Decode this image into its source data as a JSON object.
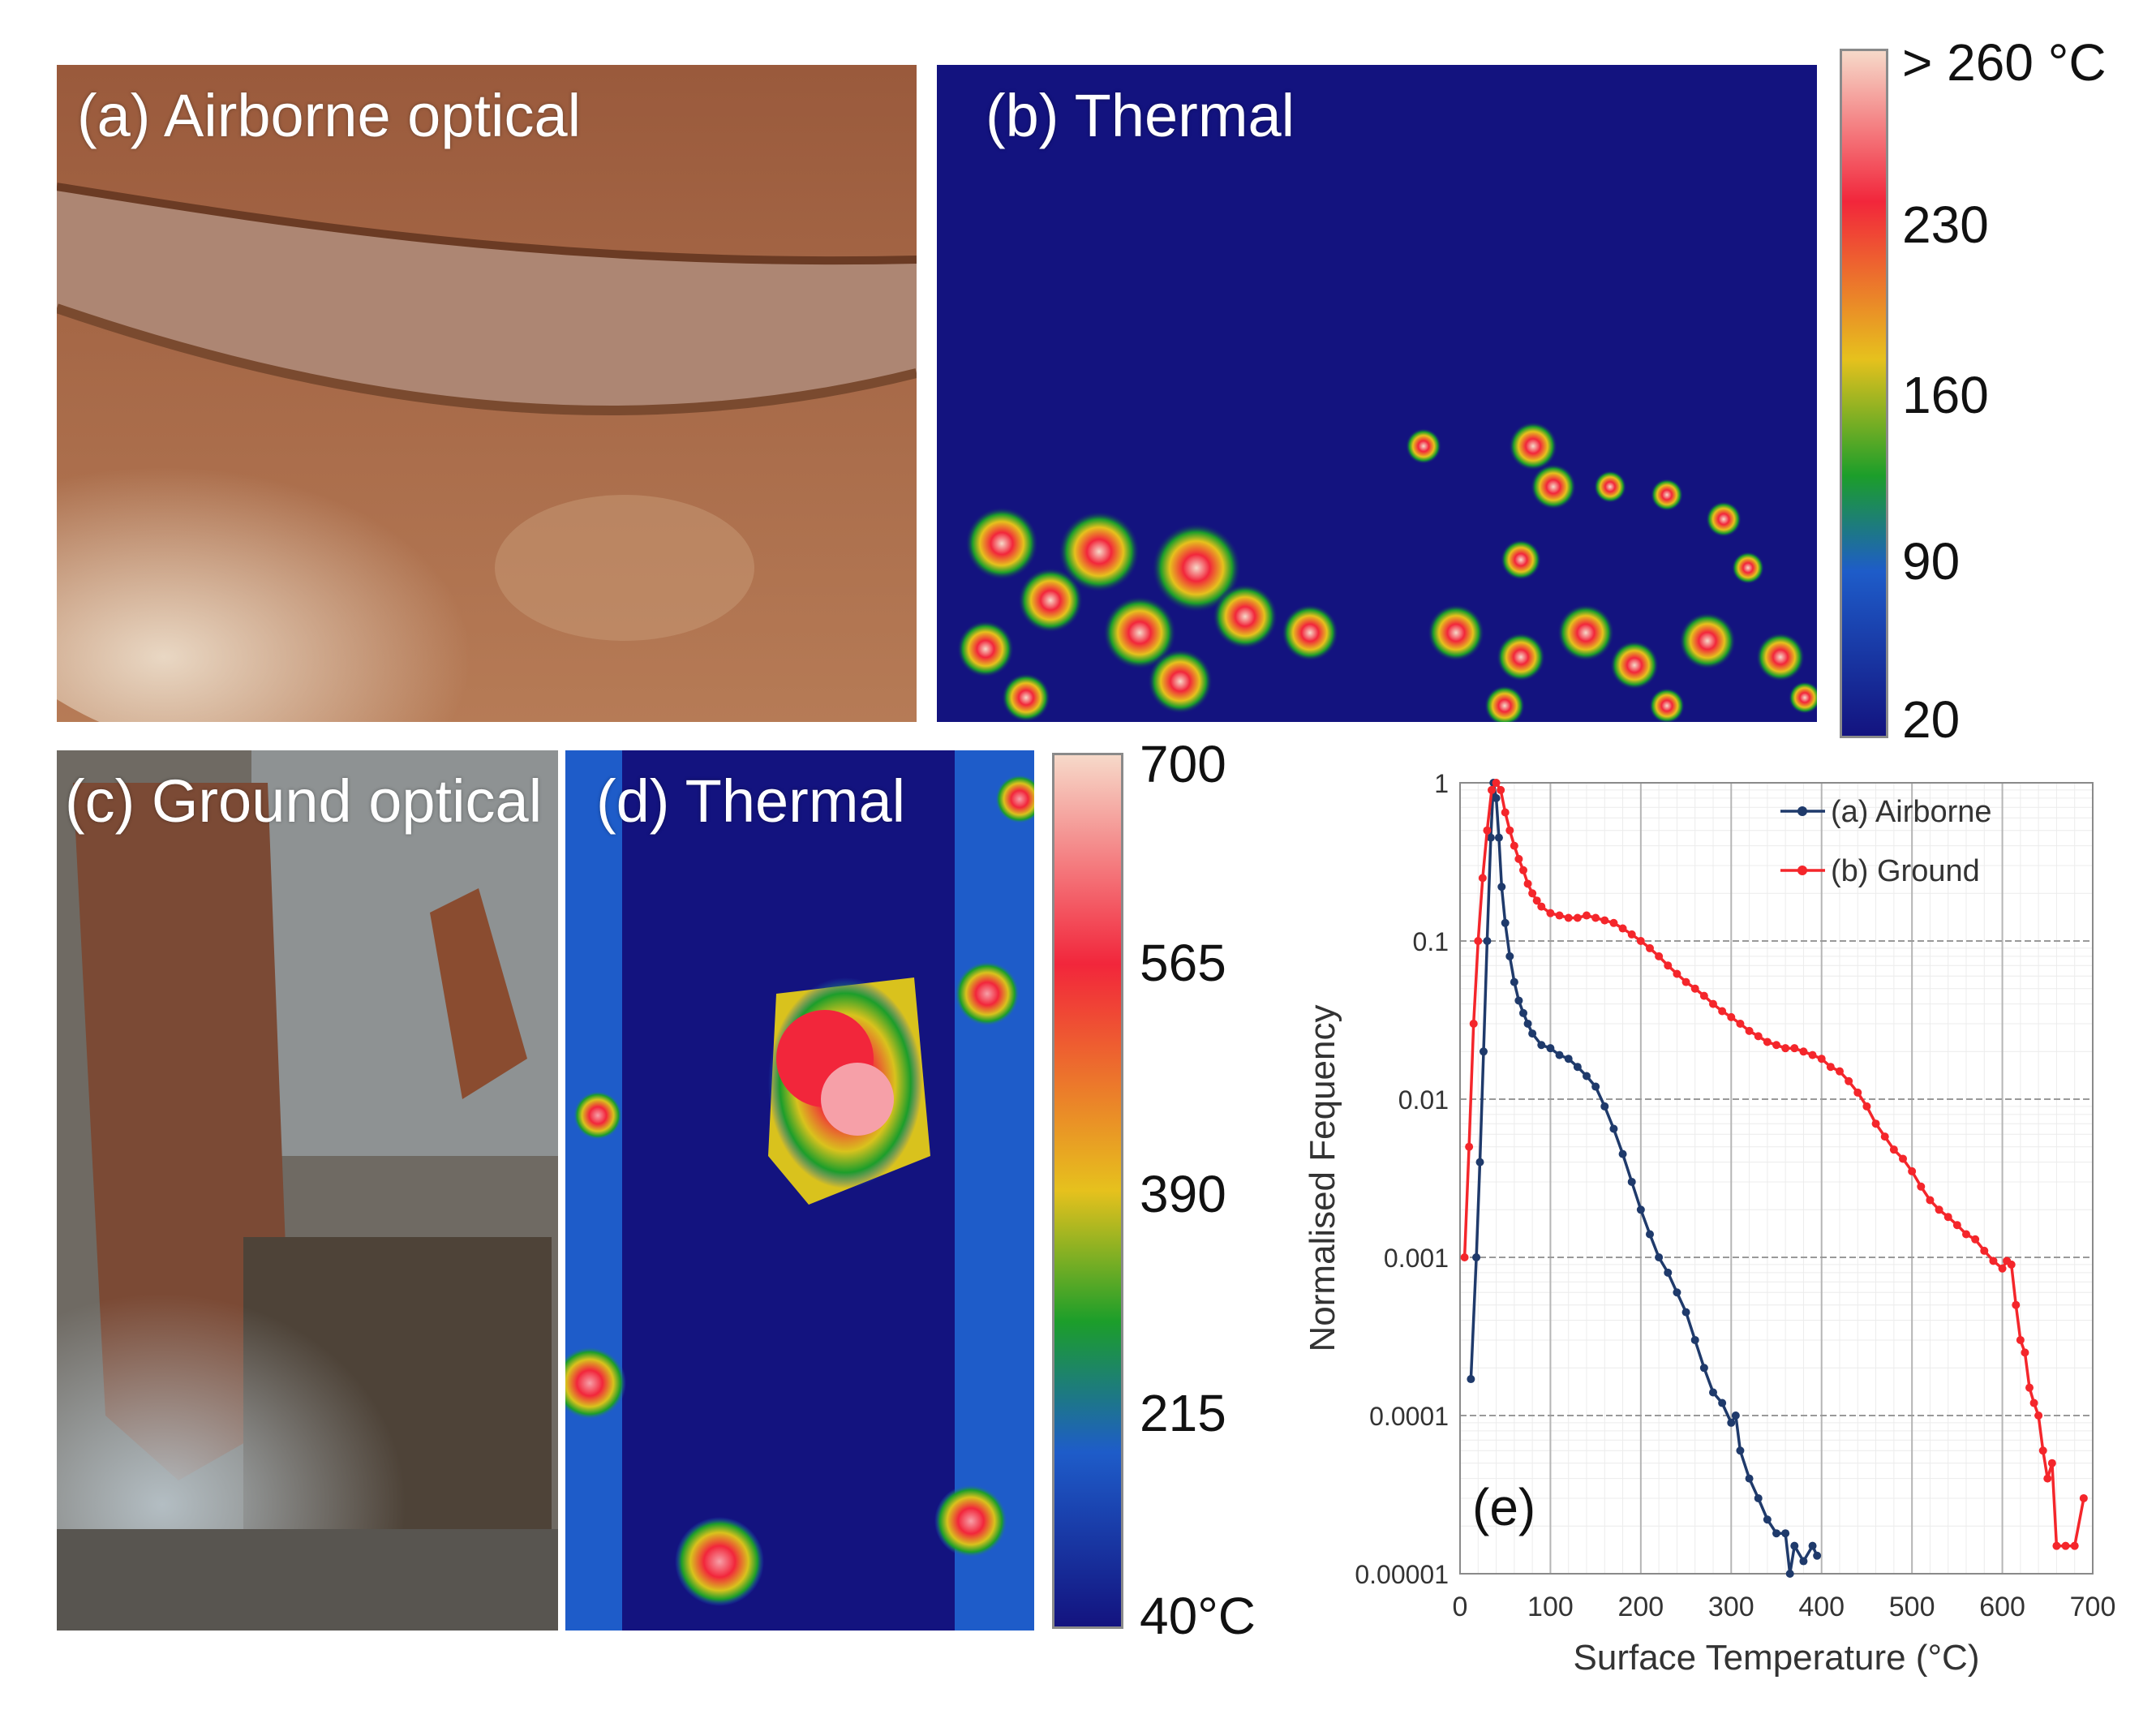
{
  "panels": {
    "a_label": "(a) Airborne optical",
    "b_label": "(b) Thermal",
    "c_label": "(c) Ground optical",
    "d_label": "(d) Thermal"
  },
  "colorbar_top": {
    "ticks": [
      "> 260 °C",
      "230",
      "160",
      "90",
      "20"
    ]
  },
  "colorbar_bottom": {
    "ticks": [
      "700",
      "565",
      "390",
      "215",
      "40°C"
    ]
  },
  "colors": {
    "thermal_low": "#13137f",
    "thermal_mid": "#1c9e2a",
    "thermal_high": "#f2263b",
    "thermal_peak": "#f6d9c9",
    "airborne_series": "#1f3a6b",
    "ground_series": "#f4262b"
  },
  "chart_data": {
    "type": "line",
    "panel_label": "(e)",
    "xlabel": "Surface Temperature (°C)",
    "ylabel": "Normalised Fequency",
    "xlim": [
      0,
      700
    ],
    "ylim": [
      1e-05,
      1
    ],
    "yscale": "log",
    "grid": true,
    "legend_position": "top-right",
    "x_ticks": [
      "0",
      "100",
      "200",
      "300",
      "400",
      "500",
      "600",
      "700"
    ],
    "y_ticks": [
      "1",
      "0.1",
      "0.01",
      "0.001",
      "0.0001",
      "0.00001"
    ],
    "series": [
      {
        "name": "(a) Airborne",
        "color": "#1f3a6b",
        "points": [
          [
            12,
            0.00017
          ],
          [
            18,
            0.001
          ],
          [
            22,
            0.004
          ],
          [
            26,
            0.02
          ],
          [
            30,
            0.1
          ],
          [
            34,
            0.45
          ],
          [
            37,
            1
          ],
          [
            40,
            0.8
          ],
          [
            43,
            0.45
          ],
          [
            46,
            0.22
          ],
          [
            50,
            0.13
          ],
          [
            55,
            0.08
          ],
          [
            60,
            0.055
          ],
          [
            65,
            0.042
          ],
          [
            70,
            0.035
          ],
          [
            75,
            0.03
          ],
          [
            80,
            0.026
          ],
          [
            90,
            0.022
          ],
          [
            100,
            0.021
          ],
          [
            110,
            0.019
          ],
          [
            120,
            0.018
          ],
          [
            130,
            0.016
          ],
          [
            140,
            0.014
          ],
          [
            150,
            0.012
          ],
          [
            160,
            0.009
          ],
          [
            170,
            0.0065
          ],
          [
            180,
            0.0045
          ],
          [
            190,
            0.003
          ],
          [
            200,
            0.002
          ],
          [
            210,
            0.0014
          ],
          [
            220,
            0.001
          ],
          [
            230,
            0.0008
          ],
          [
            240,
            0.0006
          ],
          [
            250,
            0.00045
          ],
          [
            260,
            0.0003
          ],
          [
            270,
            0.0002
          ],
          [
            280,
            0.00014
          ],
          [
            290,
            0.00012
          ],
          [
            300,
            9e-05
          ],
          [
            305,
            0.0001
          ],
          [
            310,
            6e-05
          ],
          [
            320,
            4e-05
          ],
          [
            330,
            3e-05
          ],
          [
            340,
            2.2e-05
          ],
          [
            350,
            1.8e-05
          ],
          [
            360,
            1.8e-05
          ],
          [
            365,
            1e-05
          ],
          [
            370,
            1.5e-05
          ],
          [
            380,
            1.2e-05
          ],
          [
            390,
            1.5e-05
          ],
          [
            395,
            1.3e-05
          ]
        ]
      },
      {
        "name": "(b) Ground",
        "color": "#f4262b",
        "points": [
          [
            5,
            0.001
          ],
          [
            10,
            0.005
          ],
          [
            15,
            0.03
          ],
          [
            20,
            0.1
          ],
          [
            25,
            0.25
          ],
          [
            30,
            0.5
          ],
          [
            35,
            0.9
          ],
          [
            40,
            1
          ],
          [
            45,
            0.9
          ],
          [
            50,
            0.65
          ],
          [
            55,
            0.5
          ],
          [
            60,
            0.4
          ],
          [
            65,
            0.33
          ],
          [
            70,
            0.28
          ],
          [
            75,
            0.23
          ],
          [
            80,
            0.2
          ],
          [
            85,
            0.18
          ],
          [
            90,
            0.165
          ],
          [
            100,
            0.15
          ],
          [
            110,
            0.145
          ],
          [
            120,
            0.14
          ],
          [
            130,
            0.14
          ],
          [
            140,
            0.145
          ],
          [
            150,
            0.14
          ],
          [
            160,
            0.135
          ],
          [
            170,
            0.13
          ],
          [
            180,
            0.12
          ],
          [
            190,
            0.11
          ],
          [
            200,
            0.1
          ],
          [
            210,
            0.09
          ],
          [
            220,
            0.08
          ],
          [
            230,
            0.07
          ],
          [
            240,
            0.062
          ],
          [
            250,
            0.055
          ],
          [
            260,
            0.05
          ],
          [
            270,
            0.045
          ],
          [
            280,
            0.04
          ],
          [
            290,
            0.036
          ],
          [
            300,
            0.033
          ],
          [
            310,
            0.03
          ],
          [
            320,
            0.027
          ],
          [
            330,
            0.025
          ],
          [
            340,
            0.023
          ],
          [
            350,
            0.022
          ],
          [
            360,
            0.021
          ],
          [
            370,
            0.021
          ],
          [
            380,
            0.02
          ],
          [
            390,
            0.019
          ],
          [
            400,
            0.018
          ],
          [
            410,
            0.016
          ],
          [
            420,
            0.015
          ],
          [
            430,
            0.013
          ],
          [
            440,
            0.011
          ],
          [
            450,
            0.009
          ],
          [
            460,
            0.007
          ],
          [
            470,
            0.0058
          ],
          [
            480,
            0.0048
          ],
          [
            490,
            0.0042
          ],
          [
            500,
            0.0035
          ],
          [
            510,
            0.0028
          ],
          [
            520,
            0.0023
          ],
          [
            530,
            0.002
          ],
          [
            540,
            0.0018
          ],
          [
            550,
            0.0016
          ],
          [
            560,
            0.0014
          ],
          [
            570,
            0.0013
          ],
          [
            580,
            0.0011
          ],
          [
            590,
            0.00095
          ],
          [
            600,
            0.00085
          ],
          [
            605,
            0.00095
          ],
          [
            610,
            0.0009
          ],
          [
            615,
            0.0005
          ],
          [
            620,
            0.0003
          ],
          [
            625,
            0.00025
          ],
          [
            630,
            0.00015
          ],
          [
            635,
            0.00012
          ],
          [
            640,
            0.0001
          ],
          [
            645,
            6e-05
          ],
          [
            650,
            4e-05
          ],
          [
            655,
            5e-05
          ],
          [
            660,
            1.5e-05
          ],
          [
            670,
            1.5e-05
          ],
          [
            680,
            1.5e-05
          ],
          [
            690,
            3e-05
          ]
        ]
      }
    ]
  }
}
